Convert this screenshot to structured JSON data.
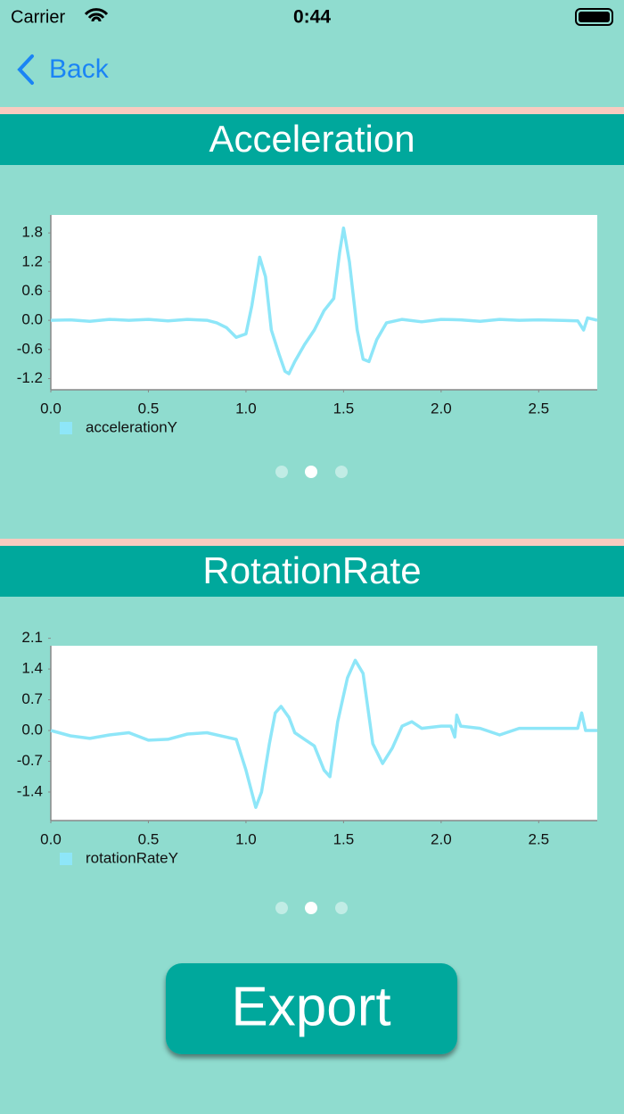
{
  "status_bar": {
    "carrier": "Carrier",
    "time": "0:44"
  },
  "nav": {
    "back": "Back"
  },
  "chart_data": [
    {
      "type": "line",
      "title": "Acceleration",
      "x": [
        0,
        0.1,
        0.2,
        0.3,
        0.4,
        0.5,
        0.6,
        0.7,
        0.8,
        0.85,
        0.9,
        0.95,
        1.0,
        1.03,
        1.07,
        1.1,
        1.13,
        1.17,
        1.2,
        1.22,
        1.25,
        1.3,
        1.35,
        1.4,
        1.45,
        1.48,
        1.5,
        1.53,
        1.57,
        1.6,
        1.63,
        1.67,
        1.72,
        1.8,
        1.9,
        2.0,
        2.1,
        2.2,
        2.3,
        2.4,
        2.5,
        2.6,
        2.7,
        2.73,
        2.75,
        2.8
      ],
      "series": [
        {
          "name": "accelerationY",
          "color": "#8ee6f8",
          "values": [
            0,
            0.01,
            -0.02,
            0.02,
            0,
            0.02,
            -0.01,
            0.02,
            0,
            -0.05,
            -0.15,
            -0.35,
            -0.28,
            0.3,
            1.3,
            0.9,
            -0.2,
            -0.7,
            -1.05,
            -1.1,
            -0.85,
            -0.5,
            -0.2,
            0.2,
            0.45,
            1.4,
            1.9,
            1.2,
            -0.2,
            -0.8,
            -0.85,
            -0.4,
            -0.05,
            0.02,
            -0.03,
            0.02,
            0.01,
            -0.02,
            0.02,
            0,
            0.01,
            0,
            -0.01,
            -0.2,
            0.05,
            0
          ]
        }
      ],
      "xlim": [
        0,
        2.8
      ],
      "xticks": [
        {
          "value": 0,
          "label": "0.0"
        },
        0.5,
        {
          "value": 1,
          "label": "1.0"
        },
        1.5,
        {
          "value": 2,
          "label": "2.0"
        },
        2.5
      ],
      "ylim": [
        -1.43,
        2.17
      ],
      "yticks": [
        1.8,
        1.2,
        0.6,
        {
          "value": 0,
          "label": "0.0"
        },
        -0.6,
        -1.2
      ],
      "legend": "bottom-left"
    },
    {
      "type": "line",
      "title": "RotationRate",
      "x": [
        0,
        0.1,
        0.2,
        0.3,
        0.4,
        0.5,
        0.6,
        0.7,
        0.8,
        0.9,
        0.95,
        1.0,
        1.05,
        1.08,
        1.12,
        1.15,
        1.18,
        1.22,
        1.25,
        1.3,
        1.35,
        1.4,
        1.43,
        1.47,
        1.52,
        1.56,
        1.6,
        1.65,
        1.7,
        1.75,
        1.8,
        1.85,
        1.9,
        2.0,
        2.05,
        2.07,
        2.08,
        2.1,
        2.2,
        2.3,
        2.4,
        2.5,
        2.6,
        2.7,
        2.72,
        2.74,
        2.8
      ],
      "series": [
        {
          "name": "rotationRateY",
          "color": "#8ee6f8",
          "values": [
            0,
            -0.12,
            -0.18,
            -0.1,
            -0.05,
            -0.22,
            -0.2,
            -0.08,
            -0.05,
            -0.15,
            -0.2,
            -0.9,
            -1.75,
            -1.4,
            -0.3,
            0.4,
            0.55,
            0.3,
            -0.05,
            -0.2,
            -0.35,
            -0.9,
            -1.05,
            0.2,
            1.2,
            1.6,
            1.3,
            -0.3,
            -0.75,
            -0.4,
            0.1,
            0.2,
            0.05,
            0.1,
            0.1,
            -0.15,
            0.35,
            0.1,
            0.05,
            -0.1,
            0.05,
            0.05,
            0.05,
            0.05,
            0.4,
            0,
            0
          ]
        }
      ],
      "xlim": [
        0,
        2.8
      ],
      "xticks": [
        {
          "value": 0,
          "label": "0.0"
        },
        0.5,
        {
          "value": 1,
          "label": "1.0"
        },
        1.5,
        {
          "value": 2,
          "label": "2.0"
        },
        2.5
      ],
      "ylim": [
        -2.05,
        1.93
      ],
      "yticks": [
        2.1,
        1.4,
        0.7,
        {
          "value": 0,
          "label": "0.0"
        },
        -0.7,
        -1.4
      ],
      "legend": "bottom-left"
    }
  ],
  "export_button": {
    "label": "Export"
  }
}
